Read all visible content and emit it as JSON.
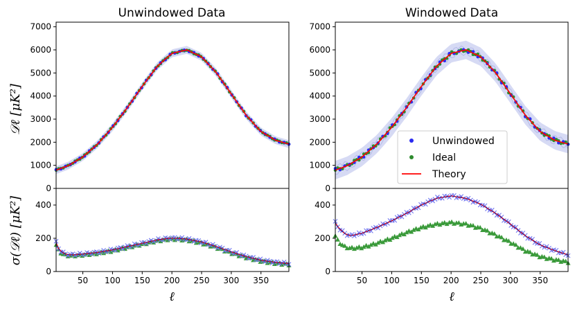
{
  "chart_data": {
    "type": "line",
    "x_range": [
      5,
      397
    ],
    "xticks": [
      50,
      100,
      150,
      200,
      250,
      300,
      350
    ],
    "xlabel": "ℓ",
    "top_ylabel": "𝒟ℓ [μK²]",
    "bottom_ylabel": "σ(𝒟ℓ) [μK²]",
    "top_ylim": [
      0,
      7200
    ],
    "top_yticks": [
      0,
      1000,
      2000,
      3000,
      4000,
      5000,
      6000,
      7000
    ],
    "bottom_ylim": [
      0,
      500
    ],
    "bottom_yticks": [
      0,
      200,
      400
    ],
    "colors": {
      "unwindowed": "#2b2bf0",
      "ideal": "#2e8b2e",
      "theory": "#ff0000",
      "band": "#c8cdf0",
      "cross": "#6f74f0",
      "triangle": "#3a9a3a"
    },
    "legend": {
      "placement": "lower-right of Windowed Data panel",
      "entries": [
        {
          "label": "Unwindowed",
          "key": "unwindowed",
          "marker": "dot"
        },
        {
          "label": "Ideal",
          "key": "ideal",
          "marker": "dot"
        },
        {
          "label": "Theory",
          "key": "theory",
          "marker": "line"
        }
      ]
    },
    "theory_spectrum": {
      "x": [
        5,
        25,
        50,
        75,
        100,
        125,
        150,
        175,
        200,
        225,
        250,
        275,
        300,
        325,
        350,
        375,
        397
      ],
      "y": [
        790,
        980,
        1360,
        1920,
        2650,
        3500,
        4420,
        5280,
        5850,
        6000,
        5700,
        5010,
        4090,
        3170,
        2460,
        2080,
        1920
      ]
    },
    "panels": [
      {
        "title": "Unwindowed Data",
        "band_halfwidth": 170,
        "sigma_unwindowed": {
          "x": [
            5,
            10,
            20,
            30,
            50,
            75,
            100,
            125,
            150,
            175,
            195,
            210,
            225,
            250,
            275,
            300,
            325,
            350,
            375,
            397
          ],
          "y": [
            175,
            130,
            105,
            100,
            105,
            115,
            130,
            150,
            170,
            190,
            200,
            200,
            195,
            178,
            150,
            118,
            90,
            68,
            55,
            48
          ]
        },
        "sigma_ideal": {
          "x": [
            5,
            10,
            20,
            30,
            50,
            75,
            100,
            125,
            150,
            175,
            195,
            210,
            225,
            250,
            275,
            300,
            325,
            350,
            375,
            397
          ],
          "y": [
            160,
            120,
            98,
            95,
            100,
            110,
            125,
            145,
            165,
            185,
            195,
            195,
            190,
            172,
            145,
            112,
            85,
            63,
            50,
            43
          ]
        }
      },
      {
        "title": "Windowed Data",
        "band_halfwidth": 400,
        "sigma_unwindowed": {
          "x": [
            5,
            10,
            20,
            30,
            50,
            75,
            100,
            125,
            150,
            175,
            200,
            225,
            250,
            275,
            300,
            325,
            350,
            375,
            397
          ],
          "y": [
            295,
            265,
            230,
            215,
            230,
            265,
            305,
            350,
            400,
            440,
            455,
            440,
            405,
            350,
            285,
            215,
            160,
            125,
            100
          ]
        },
        "sigma_ideal": {
          "x": [
            5,
            10,
            20,
            30,
            50,
            75,
            100,
            125,
            150,
            175,
            200,
            225,
            250,
            275,
            300,
            325,
            350,
            375,
            397
          ],
          "y": [
            215,
            180,
            150,
            140,
            145,
            170,
            200,
            235,
            265,
            285,
            295,
            285,
            260,
            220,
            175,
            125,
            90,
            70,
            57
          ]
        }
      }
    ]
  }
}
